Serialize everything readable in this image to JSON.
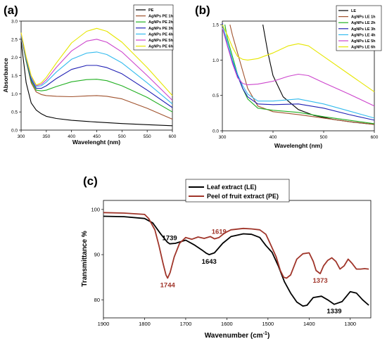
{
  "chart_data": [
    {
      "panel": "(a)",
      "type": "line",
      "xlabel": "Wavelenght (nm)",
      "ylabel": "Absorbance",
      "xlim": [
        300,
        600
      ],
      "ylim": [
        0,
        3.0
      ],
      "xticks": [
        300,
        350,
        400,
        450,
        500,
        550,
        600
      ],
      "yticks": [
        0.0,
        0.5,
        1.0,
        1.5,
        2.0,
        2.5,
        3.0
      ],
      "legend_position": "top-right",
      "series": [
        {
          "name": "PE",
          "color": "#000000",
          "x": [
            300,
            310,
            320,
            330,
            340,
            350,
            370,
            400,
            450,
            500,
            550,
            600
          ],
          "y": [
            2.45,
            1.3,
            0.75,
            0.55,
            0.45,
            0.38,
            0.32,
            0.27,
            0.22,
            0.18,
            0.15,
            0.12
          ]
        },
        {
          "name": "AgNPs PE 1h",
          "color": "#a0522d",
          "x": [
            300,
            310,
            320,
            330,
            340,
            350,
            370,
            400,
            430,
            450,
            470,
            500,
            550,
            600
          ],
          "y": [
            2.6,
            1.9,
            1.3,
            1.05,
            0.98,
            0.95,
            0.93,
            0.92,
            0.94,
            0.95,
            0.93,
            0.86,
            0.6,
            0.3
          ]
        },
        {
          "name": "AgNPs PE 2h",
          "color": "#22b022",
          "x": [
            300,
            310,
            320,
            330,
            340,
            350,
            370,
            400,
            430,
            450,
            470,
            500,
            550,
            600
          ],
          "y": [
            2.6,
            1.9,
            1.35,
            1.1,
            1.08,
            1.1,
            1.2,
            1.33,
            1.39,
            1.4,
            1.36,
            1.22,
            0.9,
            0.5
          ]
        },
        {
          "name": "AgNPs PE 3h",
          "color": "#1f1fb4",
          "x": [
            300,
            310,
            320,
            330,
            340,
            350,
            370,
            400,
            430,
            450,
            470,
            500,
            550,
            600
          ],
          "y": [
            2.6,
            1.95,
            1.4,
            1.15,
            1.15,
            1.22,
            1.42,
            1.67,
            1.78,
            1.78,
            1.72,
            1.55,
            1.1,
            0.62
          ]
        },
        {
          "name": "AgNPs PE 4h",
          "color": "#33bbee",
          "x": [
            300,
            310,
            320,
            330,
            340,
            350,
            370,
            400,
            430,
            450,
            470,
            500,
            550,
            600
          ],
          "y": [
            2.62,
            1.98,
            1.45,
            1.2,
            1.22,
            1.32,
            1.6,
            1.95,
            2.12,
            2.15,
            2.08,
            1.85,
            1.3,
            0.72
          ]
        },
        {
          "name": "AgNPs PE 5h",
          "color": "#cc44cc",
          "x": [
            300,
            310,
            320,
            330,
            340,
            350,
            370,
            400,
            430,
            450,
            470,
            500,
            550,
            600
          ],
          "y": [
            2.65,
            2.0,
            1.48,
            1.22,
            1.26,
            1.38,
            1.73,
            2.18,
            2.45,
            2.5,
            2.42,
            2.15,
            1.5,
            0.82
          ]
        },
        {
          "name": "AgNPs PE 6h",
          "color": "#e6e600",
          "x": [
            300,
            310,
            320,
            330,
            340,
            350,
            370,
            400,
            430,
            450,
            470,
            500,
            550,
            600
          ],
          "y": [
            2.68,
            2.02,
            1.5,
            1.24,
            1.3,
            1.45,
            1.85,
            2.4,
            2.72,
            2.8,
            2.72,
            2.42,
            1.72,
            0.95
          ]
        }
      ]
    },
    {
      "panel": "(b)",
      "type": "line",
      "xlabel": "Wavelenght (nm)",
      "ylabel": "",
      "xlim": [
        300,
        600
      ],
      "ylim": [
        0,
        1.55
      ],
      "xticks": [
        300,
        400,
        500,
        600
      ],
      "yticks": [
        0.0,
        0.5,
        1.0,
        1.5
      ],
      "legend_position": "top-right",
      "series": [
        {
          "name": "LE",
          "color": "#000000",
          "x": [
            380,
            390,
            400,
            420,
            450,
            480,
            520,
            560,
            600
          ],
          "y": [
            1.5,
            1.1,
            0.78,
            0.48,
            0.3,
            0.22,
            0.16,
            0.12,
            0.09
          ]
        },
        {
          "name": "AgNPs LE 1h",
          "color": "#a0522d",
          "x": [
            315,
            320,
            330,
            340,
            350,
            370,
            400,
            450,
            500,
            550,
            600
          ],
          "y": [
            1.5,
            1.35,
            1.1,
            0.85,
            0.6,
            0.35,
            0.27,
            0.23,
            0.18,
            0.13,
            0.09
          ]
        },
        {
          "name": "AgNPs LE 2h",
          "color": "#22b022",
          "x": [
            305,
            310,
            320,
            330,
            340,
            350,
            370,
            400,
            450,
            500,
            550,
            600
          ],
          "y": [
            1.5,
            1.3,
            1.05,
            0.8,
            0.6,
            0.45,
            0.32,
            0.29,
            0.26,
            0.2,
            0.15,
            0.1
          ]
        },
        {
          "name": "AgNPs LE 3h",
          "color": "#1f1fb4",
          "x": [
            300,
            310,
            320,
            330,
            340,
            350,
            370,
            400,
            450,
            500,
            550,
            600
          ],
          "y": [
            1.52,
            1.2,
            0.98,
            0.78,
            0.6,
            0.48,
            0.38,
            0.37,
            0.38,
            0.32,
            0.23,
            0.15
          ]
        },
        {
          "name": "AgNPs LE 4h",
          "color": "#33bbee",
          "x": [
            300,
            310,
            320,
            330,
            340,
            350,
            370,
            400,
            450,
            500,
            550,
            600
          ],
          "y": [
            1.5,
            1.25,
            1.0,
            0.8,
            0.64,
            0.52,
            0.42,
            0.42,
            0.45,
            0.38,
            0.28,
            0.18
          ]
        },
        {
          "name": "AgNPs LE 5h",
          "color": "#cc44cc",
          "x": [
            300,
            310,
            320,
            330,
            340,
            350,
            370,
            400,
            430,
            450,
            470,
            500,
            550,
            600
          ],
          "y": [
            1.45,
            1.2,
            0.95,
            0.75,
            0.67,
            0.65,
            0.66,
            0.7,
            0.77,
            0.8,
            0.78,
            0.68,
            0.52,
            0.35
          ]
        },
        {
          "name": "AgNPs LE 6h",
          "color": "#e6e600",
          "x": [
            300,
            310,
            320,
            330,
            340,
            350,
            370,
            400,
            430,
            450,
            470,
            500,
            550,
            600
          ],
          "y": [
            1.5,
            1.35,
            1.18,
            1.05,
            1.01,
            1.0,
            1.02,
            1.1,
            1.2,
            1.23,
            1.2,
            1.05,
            0.8,
            0.55
          ]
        }
      ]
    },
    {
      "panel": "(c)",
      "type": "line",
      "xlabel": "Wavenumber (cm",
      "xlabel_sup": "-1",
      "xlabel_end": ")",
      "ylabel": "Transmittance %",
      "xlim": [
        1900,
        1250
      ],
      "ylim": [
        76,
        102
      ],
      "xticks": [
        1900,
        1800,
        1700,
        1600,
        1500,
        1400,
        1300
      ],
      "yticks": [
        80,
        90,
        100
      ],
      "legend_position": "top",
      "series": [
        {
          "name": "Leaf extract (LE)",
          "color": "#000000",
          "x": [
            1900,
            1850,
            1800,
            1780,
            1760,
            1745,
            1739,
            1725,
            1700,
            1680,
            1660,
            1650,
            1643,
            1630,
            1610,
            1590,
            1560,
            1540,
            1520,
            1505,
            1490,
            1475,
            1460,
            1445,
            1430,
            1415,
            1405,
            1390,
            1370,
            1355,
            1339,
            1320,
            1300,
            1285,
            1270,
            1255
          ],
          "y": [
            98.5,
            98.4,
            98.0,
            97.0,
            94.5,
            92.8,
            92.4,
            92.5,
            93.2,
            92.2,
            91.0,
            90.3,
            90.0,
            90.4,
            92.5,
            94.0,
            94.6,
            94.5,
            93.8,
            92.0,
            90.5,
            87.5,
            84.0,
            81.5,
            79.5,
            78.6,
            78.8,
            80.5,
            80.8,
            80.0,
            79.0,
            79.6,
            81.8,
            81.5,
            80.0,
            78.8
          ]
        },
        {
          "name": "Peel of fruit extract (PE)",
          "color": "#a0352a",
          "x": [
            1900,
            1850,
            1800,
            1790,
            1775,
            1765,
            1755,
            1748,
            1744,
            1738,
            1728,
            1715,
            1700,
            1685,
            1670,
            1655,
            1640,
            1630,
            1619,
            1605,
            1590,
            1560,
            1540,
            1520,
            1505,
            1495,
            1480,
            1470,
            1462,
            1455,
            1445,
            1430,
            1415,
            1400,
            1390,
            1383,
            1373,
            1365,
            1355,
            1345,
            1335,
            1325,
            1315,
            1305,
            1295,
            1285,
            1275,
            1265,
            1255
          ],
          "y": [
            99.3,
            99.2,
            98.9,
            98.0,
            95.5,
            92.0,
            88.0,
            85.5,
            84.8,
            86.0,
            89.5,
            92.5,
            93.8,
            93.4,
            93.9,
            93.6,
            94.0,
            93.5,
            93.8,
            94.8,
            95.5,
            95.8,
            95.7,
            95.5,
            94.5,
            92.5,
            89.5,
            86.5,
            85.0,
            84.8,
            85.5,
            89.0,
            90.2,
            90.4,
            88.5,
            86.5,
            85.8,
            87.5,
            88.7,
            89.3,
            88.5,
            86.8,
            87.5,
            89.0,
            88.0,
            86.8,
            86.8,
            86.9,
            86.8
          ]
        }
      ],
      "annotations": [
        {
          "text": "1739",
          "x": 1739,
          "y": 92.4,
          "color": "#000000",
          "side": "above"
        },
        {
          "text": "1643",
          "x": 1643,
          "y": 90.0,
          "color": "#000000",
          "side": "below"
        },
        {
          "text": "1619",
          "x": 1619,
          "y": 93.8,
          "color": "#a0352a",
          "side": "above"
        },
        {
          "text": "1744",
          "x": 1744,
          "y": 84.8,
          "color": "#a0352a",
          "side": "below"
        },
        {
          "text": "1373",
          "x": 1373,
          "y": 85.8,
          "color": "#a0352a",
          "side": "below"
        },
        {
          "text": "1339",
          "x": 1339,
          "y": 79.0,
          "color": "#000000",
          "side": "below"
        }
      ]
    }
  ]
}
